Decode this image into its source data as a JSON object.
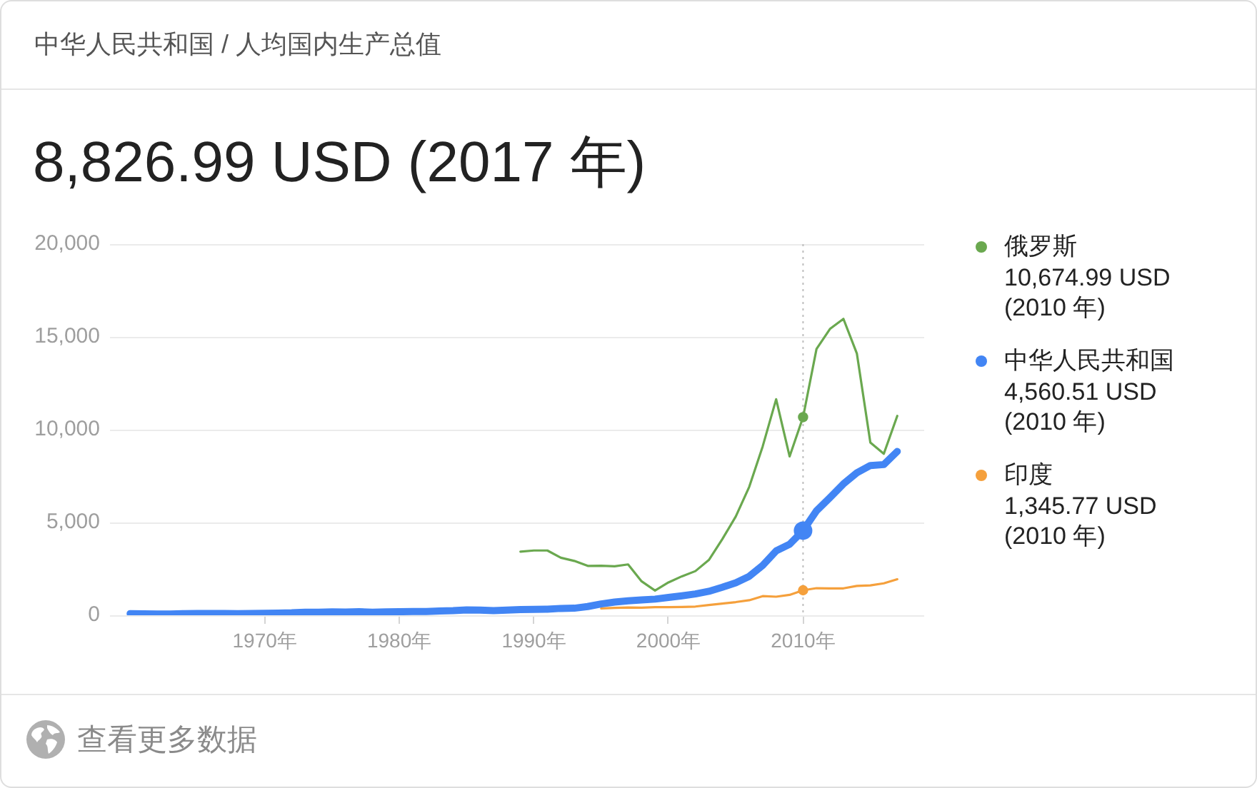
{
  "chart_data": {
    "type": "line",
    "title": "中华人民共和国 / 人均国内生产总值",
    "subtitle": "8,826.99 USD (2017 年)",
    "x": [
      1960,
      1961,
      1962,
      1963,
      1964,
      1965,
      1966,
      1967,
      1968,
      1969,
      1970,
      1971,
      1972,
      1973,
      1974,
      1975,
      1976,
      1977,
      1978,
      1979,
      1980,
      1981,
      1982,
      1983,
      1984,
      1985,
      1986,
      1987,
      1988,
      1989,
      1990,
      1991,
      1992,
      1993,
      1994,
      1995,
      1996,
      1997,
      1998,
      1999,
      2000,
      2001,
      2002,
      2003,
      2004,
      2005,
      2006,
      2007,
      2008,
      2009,
      2010,
      2011,
      2012,
      2013,
      2014,
      2015,
      2016,
      2017
    ],
    "series": [
      {
        "name": "俄罗斯",
        "color": "#6aa84f",
        "values": [
          null,
          null,
          null,
          null,
          null,
          null,
          null,
          null,
          null,
          null,
          null,
          null,
          null,
          null,
          null,
          null,
          null,
          null,
          null,
          null,
          null,
          null,
          null,
          null,
          null,
          null,
          null,
          null,
          null,
          3430,
          3490,
          3490,
          3100,
          2930,
          2660,
          2670,
          2640,
          2740,
          1830,
          1330,
          1770,
          2100,
          2380,
          2980,
          4100,
          5320,
          6920,
          9100,
          11640,
          8560,
          10674.99,
          14350,
          15430,
          15970,
          14100,
          9310,
          8700,
          10740
        ]
      },
      {
        "name": "中华人民共和国",
        "color": "#4285f4",
        "values": [
          90,
          80,
          70,
          70,
          90,
          100,
          100,
          100,
          90,
          100,
          110,
          120,
          130,
          160,
          160,
          180,
          170,
          190,
          160,
          180,
          190,
          200,
          200,
          230,
          250,
          290,
          280,
          250,
          280,
          310,
          320,
          330,
          370,
          380,
          470,
          610,
          710,
          780,
          830,
          870,
          960,
          1050,
          1150,
          1290,
          1510,
          1750,
          2100,
          2690,
          3470,
          3830,
          4560.51,
          5630,
          6340,
          7080,
          7680,
          8070,
          8120,
          8826.99
        ]
      },
      {
        "name": "印度",
        "color": "#f5a03c",
        "values": [
          null,
          null,
          null,
          null,
          null,
          null,
          null,
          null,
          null,
          null,
          null,
          null,
          null,
          null,
          null,
          null,
          null,
          null,
          null,
          null,
          null,
          null,
          null,
          null,
          null,
          null,
          null,
          null,
          null,
          null,
          null,
          null,
          null,
          null,
          null,
          370,
          400,
          420,
          410,
          440,
          440,
          450,
          470,
          550,
          630,
          710,
          810,
          1030,
          1000,
          1100,
          1345.77,
          1460,
          1450,
          1450,
          1580,
          1610,
          1720,
          1940
        ]
      }
    ],
    "xlim": [
      1958.5,
      2019
    ],
    "xticks": [
      {
        "value": 1970,
        "label": "1970年"
      },
      {
        "value": 1980,
        "label": "1980年"
      },
      {
        "value": 1990,
        "label": "1990年"
      },
      {
        "value": 2000,
        "label": "2000年"
      },
      {
        "value": 2010,
        "label": "2010年"
      }
    ],
    "ylim": [
      0,
      20000
    ],
    "yticks": [
      {
        "value": 0,
        "label": "0"
      },
      {
        "value": 5000,
        "label": "5,000"
      },
      {
        "value": 10000,
        "label": "10,000"
      },
      {
        "value": 15000,
        "label": "15,000"
      },
      {
        "value": 20000,
        "label": "20,000"
      }
    ],
    "ref_lines": [
      {
        "axis": "x",
        "value": 2010,
        "color": "#bdbdbd",
        "line_style": "dotted"
      }
    ],
    "annotations": [
      "10,674.99 USD (2010 年)",
      "4,560.51 USD (2010 年)",
      "1,345.77 USD (2010 年)",
      "查看更多数据"
    ],
    "grid": "y",
    "legend": "right",
    "marker": "none",
    "line_style": "solid"
  }
}
